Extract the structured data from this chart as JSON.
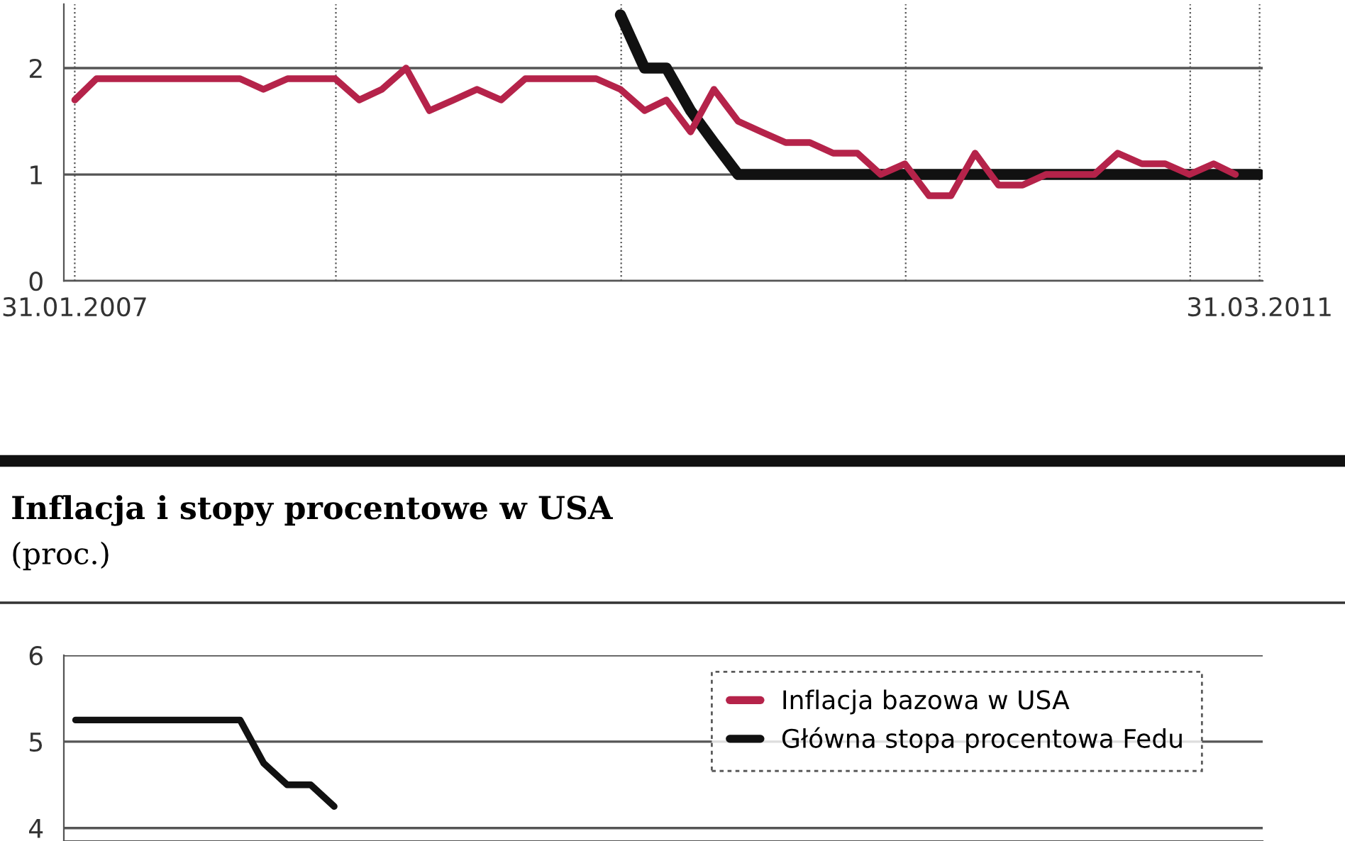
{
  "chart_data": [
    {
      "type": "line",
      "x": [
        "2007-01-31",
        "2007-02-28",
        "2007-03-31",
        "2007-04-30",
        "2007-05-31",
        "2007-06-30",
        "2007-07-31",
        "2007-08-31",
        "2007-09-30",
        "2007-10-31",
        "2007-11-30",
        "2007-12-31",
        "2008-01-31",
        "2008-02-29",
        "2008-03-31",
        "2008-04-30",
        "2008-05-31",
        "2008-06-30",
        "2008-07-31",
        "2008-08-31",
        "2008-09-30",
        "2008-10-31",
        "2008-11-30",
        "2008-12-31",
        "2009-01-31",
        "2009-02-28",
        "2009-03-31",
        "2009-04-30",
        "2009-05-31",
        "2009-06-30",
        "2009-07-31",
        "2009-08-31",
        "2009-09-30",
        "2009-10-31",
        "2009-11-30",
        "2009-12-31",
        "2010-01-31",
        "2010-02-28",
        "2010-03-31",
        "2010-04-30",
        "2010-05-31",
        "2010-06-30",
        "2010-07-31",
        "2010-08-31",
        "2010-09-30",
        "2010-10-31",
        "2010-11-30",
        "2010-12-31",
        "2011-01-31",
        "2011-02-28",
        "2011-03-31"
      ],
      "series": [
        {
          "color": "#111111",
          "values": [
            null,
            null,
            null,
            null,
            null,
            null,
            null,
            null,
            null,
            null,
            null,
            null,
            null,
            null,
            null,
            null,
            null,
            null,
            null,
            null,
            null,
            null,
            null,
            2.5,
            2.0,
            2.0,
            1.6,
            1.3,
            1.0,
            1.0,
            1.0,
            1.0,
            1.0,
            1.0,
            1.0,
            1.0,
            1.0,
            1.0,
            1.0,
            1.0,
            1.0,
            1.0,
            1.0,
            1.0,
            1.0,
            1.0,
            1.0,
            1.0,
            1.0,
            1.0,
            1.0
          ]
        },
        {
          "color": "#b5234a",
          "values": [
            1.7,
            1.9,
            1.9,
            1.9,
            1.9,
            1.9,
            1.9,
            1.9,
            1.8,
            1.9,
            1.9,
            1.9,
            1.7,
            1.8,
            2.0,
            1.6,
            1.7,
            1.8,
            1.7,
            1.9,
            1.9,
            1.9,
            1.9,
            1.8,
            1.6,
            1.7,
            1.4,
            1.8,
            1.5,
            1.4,
            1.3,
            1.3,
            1.2,
            1.2,
            1.0,
            1.1,
            0.8,
            0.8,
            1.2,
            0.9,
            0.9,
            1.0,
            1.0,
            1.0,
            1.2,
            1.1,
            1.1,
            1.0,
            1.1,
            1.0,
            null
          ]
        }
      ],
      "xlim": [
        "2007-01-17",
        "2011-04-04"
      ],
      "xticks": [
        {
          "value": "2007-01-31",
          "label": "31.01.2007"
        },
        {
          "value": "2008-01-01",
          "label": null
        },
        {
          "value": "2009-01-01",
          "label": null
        },
        {
          "value": "2010-01-01",
          "label": null
        },
        {
          "value": "2011-01-01",
          "label": null
        },
        {
          "value": "2011-03-31",
          "label": "31.03.2011"
        }
      ],
      "ylim": [
        0,
        2.6
      ],
      "yticks": [
        0,
        1,
        2
      ],
      "grid": true,
      "legend": false
    },
    {
      "type": "line",
      "title": "Inflacja i stopy procentowe w USA",
      "subtitle": "(proc.)",
      "categories": [
        null,
        null,
        null,
        null,
        null,
        null,
        null,
        null,
        null,
        null,
        null,
        null,
        null,
        null,
        null,
        null,
        null,
        null,
        null,
        null,
        null,
        null,
        null,
        null,
        null,
        null,
        null,
        null,
        null,
        null,
        null,
        null,
        null,
        null,
        null,
        null,
        null,
        null,
        null,
        null,
        null,
        null,
        null,
        null,
        null,
        null,
        null,
        null,
        null,
        null,
        null
      ],
      "series": [
        {
          "name": "Inflacja bazowa w USA",
          "color": "#b5234a",
          "values": [
            null,
            null,
            null,
            null,
            null,
            null,
            null,
            null,
            null,
            null,
            null,
            null,
            null,
            null,
            null,
            null,
            null,
            null,
            null,
            null,
            null,
            null,
            null,
            null,
            null,
            null,
            null,
            null,
            null,
            null,
            null,
            null,
            null,
            null,
            null,
            null,
            null,
            null,
            null,
            null,
            null,
            null,
            null,
            null,
            null,
            null,
            null,
            null,
            null,
            null,
            null
          ]
        },
        {
          "name": "Główna stopa procentowa Fedu",
          "color": "#111111",
          "values": [
            5.25,
            5.25,
            5.25,
            5.25,
            5.25,
            5.25,
            5.25,
            5.25,
            4.75,
            4.5,
            4.5,
            4.25,
            null,
            null,
            null,
            null,
            null,
            null,
            null,
            null,
            null,
            null,
            null,
            null,
            null,
            null,
            null,
            null,
            null,
            null,
            null,
            null,
            null,
            null,
            null,
            null,
            null,
            null,
            null,
            null,
            null,
            null,
            null,
            null,
            null,
            null,
            null,
            null,
            null,
            null,
            null
          ]
        }
      ],
      "ylim": [
        3.85,
        6
      ],
      "yticks": [
        4,
        5,
        6
      ],
      "grid": "y",
      "legend": "top right"
    }
  ]
}
